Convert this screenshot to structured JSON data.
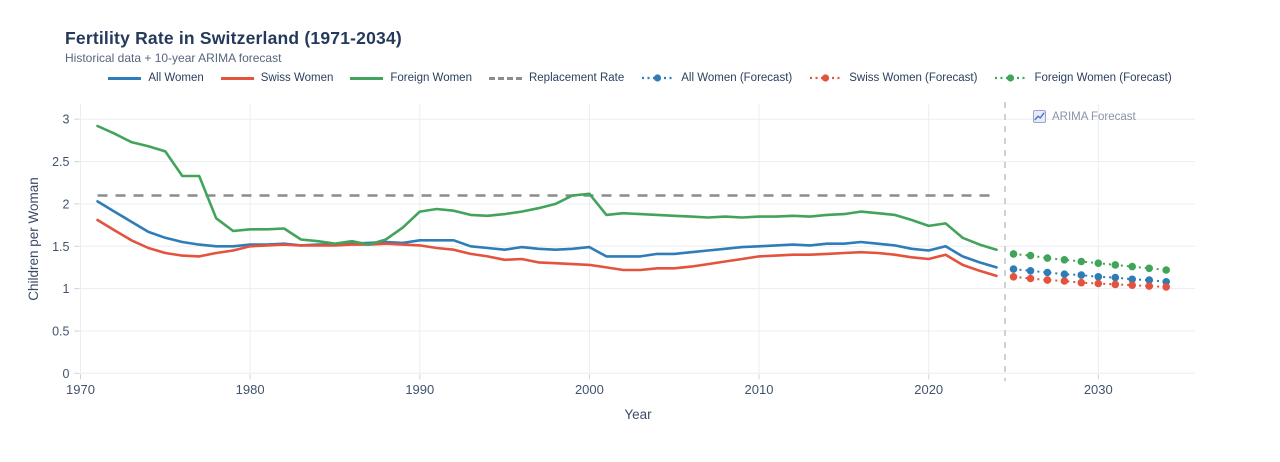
{
  "header": {
    "title": "Fertility Rate in Switzerland (1971-2034)",
    "subtitle": "Historical data + 10-year ARIMA forecast"
  },
  "annotation": {
    "label": "ARIMA Forecast"
  },
  "colors": {
    "all_women": "#2e7cb8",
    "swiss_women": "#e3533e",
    "foreign_women": "#42a45a",
    "replacement": "#8c8c8c",
    "divider": "#c9cdd4",
    "grid": "#ebedf3",
    "tick_text": "#42536b",
    "axis_title_text": "#3c4c66",
    "title_text": "#25395b",
    "annotation_text": "#8b93a7"
  },
  "chart_data": {
    "type": "line",
    "title": "Fertility Rate in Switzerland (1971-2034)",
    "subtitle": "Historical data + 10-year ARIMA forecast",
    "xlabel": "Year",
    "ylabel": "Children per Woman",
    "xlim": [
      1970,
      2035.7
    ],
    "ylim": [
      0,
      3.18
    ],
    "xticks": [
      1970,
      1980,
      1990,
      2000,
      2010,
      2020,
      2030
    ],
    "yticks": [
      0,
      0.5,
      1,
      1.5,
      2,
      2.5,
      3
    ],
    "grid": true,
    "legend_position": "top-center",
    "forecast_boundary_x": 2024.5,
    "annotation": "ARIMA Forecast",
    "replacement_rate": {
      "name": "Replacement Rate",
      "value": 2.1,
      "x_start": 1971,
      "x_end": 2024,
      "style": "dashed",
      "color_key": "replacement"
    },
    "historical_years": [
      1971,
      1972,
      1973,
      1974,
      1975,
      1976,
      1977,
      1978,
      1979,
      1980,
      1981,
      1982,
      1983,
      1984,
      1985,
      1986,
      1987,
      1988,
      1989,
      1990,
      1991,
      1992,
      1993,
      1994,
      1995,
      1996,
      1997,
      1998,
      1999,
      2000,
      2001,
      2002,
      2003,
      2004,
      2005,
      2006,
      2007,
      2008,
      2009,
      2010,
      2011,
      2012,
      2013,
      2014,
      2015,
      2016,
      2017,
      2018,
      2019,
      2020,
      2021,
      2022,
      2023,
      2024
    ],
    "forecast_years": [
      2025,
      2026,
      2027,
      2028,
      2029,
      2030,
      2031,
      2032,
      2033,
      2034
    ],
    "series": [
      {
        "name": "All Women",
        "kind": "historical",
        "style": "solid",
        "color_key": "all_women",
        "values": [
          2.03,
          1.91,
          1.79,
          1.67,
          1.6,
          1.55,
          1.52,
          1.5,
          1.5,
          1.52,
          1.52,
          1.53,
          1.51,
          1.52,
          1.52,
          1.53,
          1.54,
          1.55,
          1.54,
          1.57,
          1.57,
          1.57,
          1.5,
          1.48,
          1.46,
          1.49,
          1.47,
          1.46,
          1.47,
          1.49,
          1.38,
          1.38,
          1.38,
          1.41,
          1.41,
          1.43,
          1.45,
          1.47,
          1.49,
          1.5,
          1.51,
          1.52,
          1.51,
          1.53,
          1.53,
          1.55,
          1.53,
          1.51,
          1.47,
          1.45,
          1.5,
          1.38,
          1.31,
          1.25
        ]
      },
      {
        "name": "Swiss Women",
        "kind": "historical",
        "style": "solid",
        "color_key": "swiss_women",
        "values": [
          1.81,
          1.69,
          1.57,
          1.48,
          1.42,
          1.39,
          1.38,
          1.42,
          1.45,
          1.5,
          1.51,
          1.52,
          1.51,
          1.51,
          1.51,
          1.52,
          1.52,
          1.53,
          1.52,
          1.51,
          1.48,
          1.46,
          1.41,
          1.38,
          1.34,
          1.35,
          1.31,
          1.3,
          1.29,
          1.28,
          1.25,
          1.22,
          1.22,
          1.24,
          1.24,
          1.26,
          1.29,
          1.32,
          1.35,
          1.38,
          1.39,
          1.4,
          1.4,
          1.41,
          1.42,
          1.43,
          1.42,
          1.4,
          1.37,
          1.35,
          1.4,
          1.28,
          1.21,
          1.15
        ]
      },
      {
        "name": "Foreign Women",
        "kind": "historical",
        "style": "solid",
        "color_key": "foreign_women",
        "values": [
          2.92,
          2.83,
          2.73,
          2.68,
          2.62,
          2.33,
          2.33,
          1.83,
          1.68,
          1.7,
          1.7,
          1.71,
          1.58,
          1.56,
          1.53,
          1.56,
          1.52,
          1.58,
          1.72,
          1.91,
          1.94,
          1.92,
          1.87,
          1.86,
          1.88,
          1.91,
          1.95,
          2.0,
          2.1,
          2.12,
          1.87,
          1.89,
          1.88,
          1.87,
          1.86,
          1.85,
          1.84,
          1.85,
          1.84,
          1.85,
          1.85,
          1.86,
          1.85,
          1.87,
          1.88,
          1.91,
          1.89,
          1.87,
          1.81,
          1.74,
          1.77,
          1.6,
          1.52,
          1.46
        ]
      },
      {
        "name": "All Women (Forecast)",
        "kind": "forecast",
        "style": "dotted-marker",
        "color_key": "all_women",
        "values": [
          1.23,
          1.21,
          1.19,
          1.17,
          1.16,
          1.14,
          1.13,
          1.11,
          1.1,
          1.08
        ]
      },
      {
        "name": "Swiss Women (Forecast)",
        "kind": "forecast",
        "style": "dotted-marker",
        "color_key": "swiss_women",
        "values": [
          1.14,
          1.12,
          1.1,
          1.09,
          1.07,
          1.06,
          1.05,
          1.04,
          1.03,
          1.02
        ]
      },
      {
        "name": "Foreign Women (Forecast)",
        "kind": "forecast",
        "style": "dotted-marker",
        "color_key": "foreign_women",
        "values": [
          1.41,
          1.39,
          1.36,
          1.34,
          1.32,
          1.3,
          1.28,
          1.26,
          1.24,
          1.22
        ]
      }
    ],
    "legend_order": [
      "All Women",
      "Swiss Women",
      "Foreign Women",
      "Replacement Rate",
      "All Women (Forecast)",
      "Swiss Women (Forecast)",
      "Foreign Women (Forecast)"
    ]
  }
}
